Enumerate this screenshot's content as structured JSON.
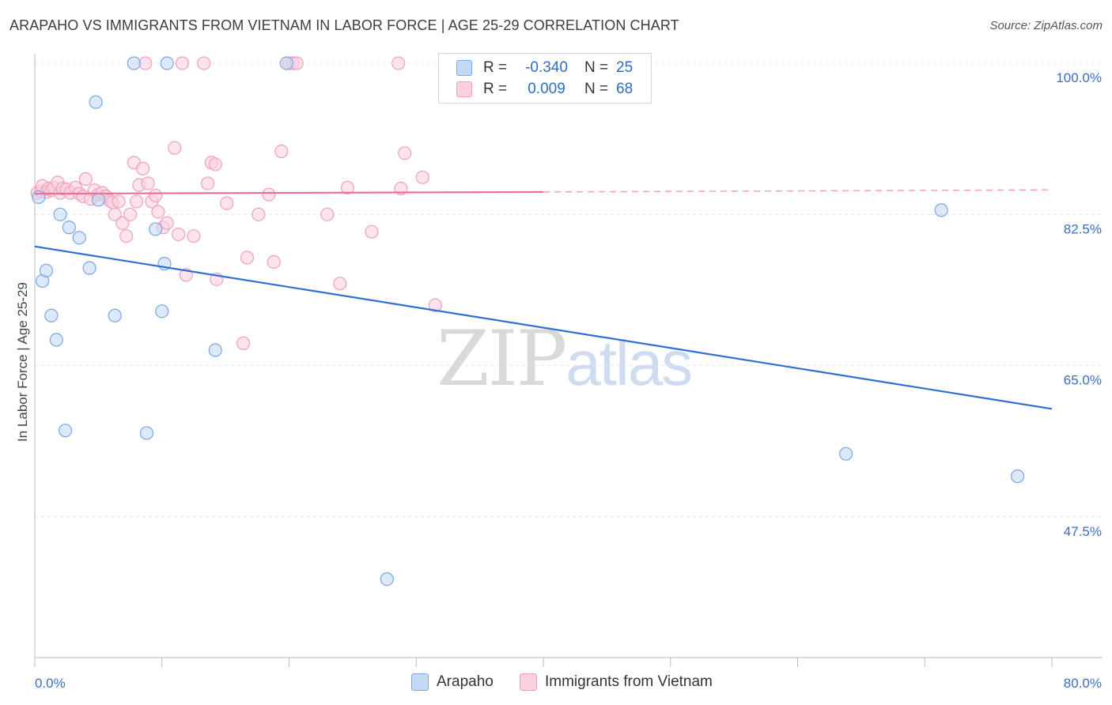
{
  "title": "ARAPAHO VS IMMIGRANTS FROM VIETNAM IN LABOR FORCE | AGE 25-29 CORRELATION CHART",
  "source": "Source: ZipAtlas.com",
  "watermark": {
    "zip": "ZIP",
    "atlas": "atlas"
  },
  "colors": {
    "arapaho": "#7aa7e6",
    "arapaho_fill": "#c6d9f4",
    "vietnam": "#f0a0bb",
    "vietnam_fill": "#fbd0df",
    "arapaho_line": "#2e6fd0",
    "vietnam_line": "#e8709a"
  },
  "legend": {
    "rows": [
      {
        "r_label": "R =",
        "r_value": "-0.340",
        "n_label": "N =",
        "n_value": "25"
      },
      {
        "r_label": "R =",
        "r_value": "0.009",
        "n_label": "N =",
        "n_value": "68"
      }
    ]
  },
  "chart_data": {
    "type": "scatter",
    "xlabel": "",
    "ylabel": "In Labor Force | Age 25-29",
    "xlim": [
      0,
      80
    ],
    "ylim": [
      30.5,
      101.5
    ],
    "x_tick_labels": [
      "0.0%",
      "80.0%"
    ],
    "y_tick_labels": [
      "100.0%",
      "82.5%",
      "65.0%",
      "47.5%"
    ],
    "y_ticks": [
      100,
      82.5,
      65,
      47.5
    ],
    "grid": true,
    "legend_position": "top-center",
    "series": [
      {
        "name": "Arapaho",
        "points": [
          [
            0.3,
            84.5
          ],
          [
            0.6,
            74.8
          ],
          [
            0.9,
            76.0
          ],
          [
            1.3,
            70.8
          ],
          [
            1.7,
            68.0
          ],
          [
            2.0,
            82.5
          ],
          [
            2.4,
            57.5
          ],
          [
            2.7,
            81.0
          ],
          [
            3.5,
            79.8
          ],
          [
            4.3,
            76.3
          ],
          [
            4.8,
            95.5
          ],
          [
            5.0,
            84.2
          ],
          [
            6.3,
            70.8
          ],
          [
            7.8,
            100.0
          ],
          [
            8.8,
            57.2
          ],
          [
            9.5,
            80.8
          ],
          [
            10.0,
            71.3
          ],
          [
            10.2,
            76.8
          ],
          [
            10.4,
            100.0
          ],
          [
            14.2,
            66.8
          ],
          [
            19.8,
            100.0
          ],
          [
            27.7,
            40.3
          ],
          [
            63.8,
            54.8
          ],
          [
            71.3,
            83.0
          ],
          [
            77.3,
            52.2
          ]
        ]
      },
      {
        "name": "Immigrants from Vietnam",
        "points": [
          [
            0.2,
            85.0
          ],
          [
            0.5,
            85.2
          ],
          [
            0.6,
            85.8
          ],
          [
            0.9,
            85.1
          ],
          [
            1.1,
            85.5
          ],
          [
            1.3,
            85.3
          ],
          [
            1.5,
            85.6
          ],
          [
            1.8,
            86.2
          ],
          [
            2.0,
            85.0
          ],
          [
            2.2,
            85.5
          ],
          [
            2.5,
            85.4
          ],
          [
            2.8,
            85.0
          ],
          [
            3.2,
            85.6
          ],
          [
            3.5,
            84.9
          ],
          [
            3.8,
            84.6
          ],
          [
            4.0,
            86.6
          ],
          [
            4.4,
            84.3
          ],
          [
            4.7,
            85.3
          ],
          [
            5.0,
            84.8
          ],
          [
            5.3,
            85.0
          ],
          [
            5.6,
            84.6
          ],
          [
            5.9,
            84.1
          ],
          [
            6.1,
            83.9
          ],
          [
            6.3,
            82.5
          ],
          [
            6.6,
            84.0
          ],
          [
            6.9,
            81.5
          ],
          [
            7.2,
            80.0
          ],
          [
            7.5,
            82.5
          ],
          [
            7.8,
            88.5
          ],
          [
            8.0,
            84.0
          ],
          [
            8.2,
            85.9
          ],
          [
            8.5,
            87.8
          ],
          [
            8.7,
            100.0
          ],
          [
            8.9,
            86.1
          ],
          [
            9.2,
            84.0
          ],
          [
            9.5,
            84.7
          ],
          [
            9.7,
            82.8
          ],
          [
            10.1,
            81.0
          ],
          [
            10.4,
            81.5
          ],
          [
            11.0,
            90.2
          ],
          [
            11.3,
            80.2
          ],
          [
            11.6,
            100.0
          ],
          [
            11.9,
            75.5
          ],
          [
            12.5,
            80.0
          ],
          [
            13.3,
            100.0
          ],
          [
            13.6,
            86.1
          ],
          [
            13.9,
            88.5
          ],
          [
            14.2,
            88.3
          ],
          [
            14.3,
            75.0
          ],
          [
            15.1,
            83.8
          ],
          [
            16.4,
            67.6
          ],
          [
            16.7,
            77.5
          ],
          [
            17.6,
            82.5
          ],
          [
            18.4,
            84.8
          ],
          [
            18.8,
            77.0
          ],
          [
            19.4,
            89.8
          ],
          [
            20.0,
            100.0
          ],
          [
            20.3,
            100.0
          ],
          [
            20.6,
            100.0
          ],
          [
            23.0,
            82.5
          ],
          [
            24.0,
            74.5
          ],
          [
            24.6,
            85.6
          ],
          [
            26.5,
            80.5
          ],
          [
            28.6,
            100.0
          ],
          [
            28.8,
            85.5
          ],
          [
            29.1,
            89.6
          ],
          [
            30.5,
            86.8
          ],
          [
            31.5,
            72.0
          ]
        ]
      }
    ],
    "trend_lines": [
      {
        "series": "Arapaho",
        "x": [
          0,
          80
        ],
        "y": [
          78.8,
          60.0
        ],
        "style": "solid"
      },
      {
        "series": "Immigrants from Vietnam",
        "solid_x": [
          0,
          40
        ],
        "solid_y": [
          84.9,
          85.1
        ],
        "dashed_x": [
          40,
          80
        ],
        "dashed_y": [
          85.1,
          85.35
        ]
      }
    ]
  }
}
